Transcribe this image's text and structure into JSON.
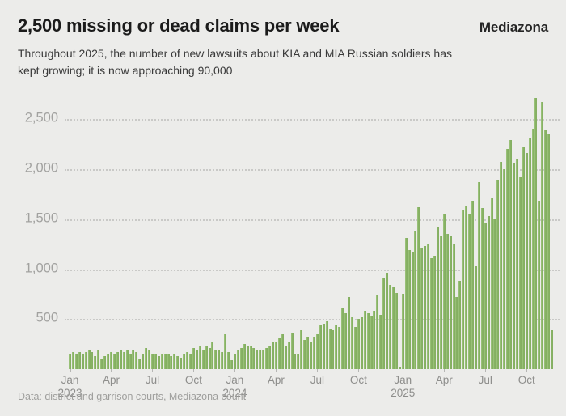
{
  "header": {
    "title": "2,500 missing or dead claims per week",
    "subtitle": "Throughout 2025, the number of new lawsuits about KIA and MIA Russian soldiers has kept growing; it is now approaching 90,000",
    "logo": "Mediazona"
  },
  "footer": {
    "source": "Data: district and garrison courts, Mediazona count"
  },
  "colors": {
    "background": "#ececea",
    "bar": "#86b163",
    "bar_highlight": "#a3c983",
    "title": "#1b1b1b",
    "subtitle": "#3a3a3a",
    "gridline": "#c9c9c7",
    "y_axis_label": "#a2a2a0",
    "x_axis_label": "#8e8e8c",
    "footer_text": "#9f9f9d"
  },
  "chart_data": {
    "type": "bar",
    "title": "2,500 missing or dead claims per week",
    "xlabel": "",
    "ylabel": "",
    "x_unit": "week",
    "x_range_note": "one bar per week, Jan 2023 through early Nov 2025",
    "ylim": [
      0,
      2750
    ],
    "grid": "horizontal dotted",
    "legend": "none",
    "yticks": [
      500,
      1000,
      1500,
      2000,
      2500
    ],
    "ytick_labels": [
      "500",
      "1,000",
      "1,500",
      "2,000",
      "2,500"
    ],
    "xticks": [
      {
        "week_index": 0,
        "label": "Jan",
        "year": "2023"
      },
      {
        "week_index": 13,
        "label": "Apr",
        "year": ""
      },
      {
        "week_index": 26,
        "label": "Jul",
        "year": ""
      },
      {
        "week_index": 39,
        "label": "Oct",
        "year": ""
      },
      {
        "week_index": 52,
        "label": "Jan",
        "year": "2024"
      },
      {
        "week_index": 65,
        "label": "Apr",
        "year": ""
      },
      {
        "week_index": 78,
        "label": "Jul",
        "year": ""
      },
      {
        "week_index": 91,
        "label": "Oct",
        "year": ""
      },
      {
        "week_index": 105,
        "label": "Jan",
        "year": "2025"
      },
      {
        "week_index": 118,
        "label": "Apr",
        "year": ""
      },
      {
        "week_index": 131,
        "label": "Jul",
        "year": ""
      },
      {
        "week_index": 144,
        "label": "Oct",
        "year": ""
      }
    ],
    "values": [
      145,
      170,
      155,
      170,
      155,
      170,
      185,
      170,
      130,
      185,
      105,
      130,
      145,
      170,
      155,
      170,
      185,
      170,
      185,
      155,
      185,
      170,
      105,
      155,
      210,
      185,
      155,
      145,
      130,
      145,
      145,
      155,
      130,
      145,
      130,
      115,
      145,
      170,
      155,
      210,
      195,
      225,
      195,
      235,
      210,
      265,
      195,
      185,
      170,
      345,
      170,
      90,
      155,
      195,
      210,
      250,
      235,
      225,
      210,
      195,
      185,
      195,
      210,
      235,
      265,
      275,
      305,
      345,
      235,
      275,
      355,
      145,
      145,
      385,
      290,
      315,
      275,
      315,
      345,
      435,
      450,
      475,
      400,
      385,
      435,
      425,
      615,
      560,
      720,
      515,
      425,
      505,
      515,
      585,
      560,
      530,
      585,
      735,
      545,
      910,
      965,
      845,
      815,
      760,
      25,
      750,
      1310,
      1190,
      1175,
      1380,
      1620,
      1205,
      1230,
      1255,
      1110,
      1135,
      1420,
      1340,
      1555,
      1350,
      1340,
      1245,
      720,
      880,
      1595,
      1635,
      1555,
      1685,
      1030,
      1870,
      1610,
      1465,
      1530,
      1710,
      1505,
      1895,
      2070,
      2000,
      2200,
      2295,
      2055,
      2095,
      1920,
      2215,
      2165,
      2310,
      2405,
      2715,
      1685,
      2670,
      2385,
      2345,
      390
    ]
  }
}
